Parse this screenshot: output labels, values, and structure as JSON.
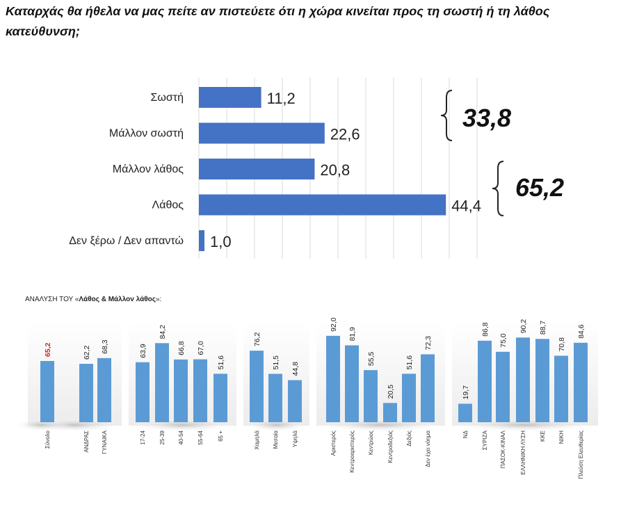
{
  "title": "Καταρχάς θα ήθελα να μας πείτε αν πιστεύετε ότι η χώρα κινείται προς τη σωστή ή τη λάθος κατεύθυνση;",
  "subtitle_prefix": "ΑΝΑΛΥΣΗ ΤΟΥ «",
  "subtitle_bold": "Λάθος & Μάλλον λάθος",
  "subtitle_suffix": "»:",
  "colors": {
    "bar": "#4472c4",
    "bar_light": "#5b9bd5",
    "highlight": "#e02020",
    "grid": "#d9d9d9"
  },
  "chart_data": [
    {
      "type": "bar",
      "orientation": "horizontal",
      "categories": [
        "Σωστή",
        "Μάλλον σωστή",
        "Μάλλον λάθος",
        "Λάθος",
        "Δεν ξέρω / Δεν απαντώ"
      ],
      "values": [
        11.2,
        22.6,
        20.8,
        44.4,
        1.0
      ],
      "value_labels": [
        "11,2",
        "22,6",
        "20,8",
        "44,4",
        "1,0"
      ],
      "xlim": [
        0,
        50
      ],
      "grid": true,
      "annotations": [
        {
          "text": "33,8",
          "groups": [
            "Σωστή",
            "Μάλλον σωστή"
          ]
        },
        {
          "text": "65,2",
          "groups": [
            "Μάλλον λάθος",
            "Λάθος"
          ]
        }
      ]
    },
    {
      "type": "bar",
      "orientation": "vertical",
      "ylim": [
        0,
        100
      ],
      "groups": [
        {
          "categories": [
            "Σύνολο"
          ],
          "values": [
            65.2
          ],
          "labels": [
            "65,2"
          ],
          "highlight": [
            true
          ]
        },
        {
          "categories": [
            "ΑΝΔΡΑΣ",
            "ΓΥΝΑΙΚΑ"
          ],
          "values": [
            62.2,
            68.3
          ],
          "labels": [
            "62,2",
            "68,3"
          ]
        },
        {
          "categories": [
            "17-24",
            "25-39",
            "40-54",
            "55-64",
            "65 +"
          ],
          "values": [
            63.9,
            84.2,
            66.8,
            67.0,
            51.6
          ],
          "labels": [
            "63,9",
            "84,2",
            "66,8",
            "67,0",
            "51,6"
          ]
        },
        {
          "categories": [
            "Χαμηλά",
            "Μεσαία",
            "Υψηλά"
          ],
          "values": [
            76.2,
            51.5,
            44.8
          ],
          "labels": [
            "76,2",
            "51,5",
            "44,8"
          ]
        },
        {
          "categories": [
            "Αριστερός",
            "Κεντροαριστερός",
            "Κεντρώος",
            "Κεντροδεξιός",
            "Δεξιός",
            "Δεν έχει νόημα"
          ],
          "values": [
            92.0,
            81.9,
            55.5,
            20.5,
            51.6,
            72.3
          ],
          "labels": [
            "92,0",
            "81,9",
            "55,5",
            "20,5",
            "51,6",
            "72,3"
          ]
        },
        {
          "categories": [
            "ΝΔ",
            "ΣΥΡΙΖΑ",
            "ΠΑΣΟΚ-ΚΙΝΑΛ",
            "ΕΛΛΗΝΙΚΗ ΛΥΣΗ",
            "ΚΚΕ",
            "ΝΙΚΗ",
            "Πλεύση Ελευθερίας"
          ],
          "values": [
            19.7,
            86.8,
            75.0,
            90.2,
            88.7,
            70.8,
            84.6
          ],
          "labels": [
            "19,7",
            "86,8",
            "75,0",
            "90,2",
            "88,7",
            "70,8",
            "84,6"
          ]
        }
      ]
    }
  ]
}
